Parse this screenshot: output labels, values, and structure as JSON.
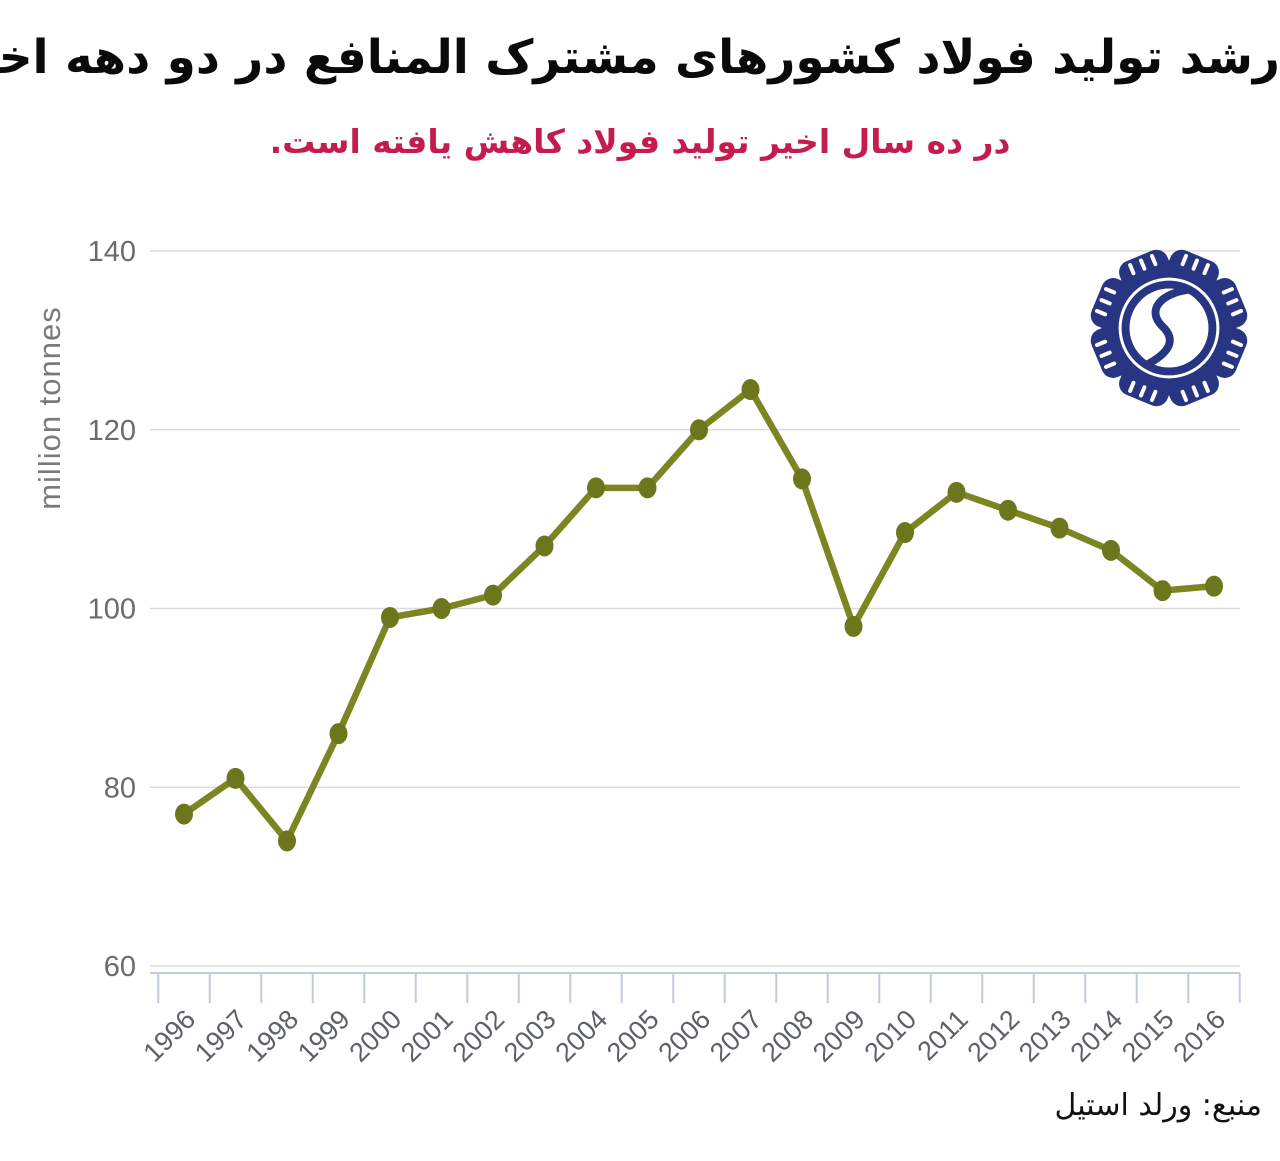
{
  "colors": {
    "title": "#0a0a0a",
    "subtitle": "#c41d4d",
    "line": "#7b8623",
    "marker": "#6c771d",
    "grid": "#dcdcdc",
    "axis_line": "#c2cadd",
    "tick_label": "#5d6166",
    "y_tick_label": "#6b6b6b",
    "y_unit_label": "#7a7a7a",
    "logo": "#283583",
    "source_text": "#111111"
  },
  "icons": {
    "logo": "hands-gear-steel-emblem"
  },
  "chart_data": {
    "type": "line",
    "title": "رشد تولید فولاد کشورهای مشترک المنافع در دو دهه اخیر",
    "subtitle": "در ده سال اخیر تولید فولاد کاهش یافته است.",
    "ylabel": "million tonnes",
    "xlabel": "",
    "categories": [
      "1996",
      "1997",
      "1998",
      "1999",
      "2000",
      "2001",
      "2002",
      "2003",
      "2004",
      "2005",
      "2006",
      "2007",
      "2008",
      "2009",
      "2010",
      "2011",
      "2012",
      "2013",
      "2014",
      "2015",
      "2016"
    ],
    "values": [
      77,
      81,
      74,
      86,
      99,
      100,
      101.5,
      107,
      113.5,
      113.5,
      120,
      124.5,
      114.5,
      98,
      108.5,
      113,
      111,
      109,
      106.5,
      102,
      102.5
    ],
    "ylim": [
      60,
      140
    ],
    "yticks": [
      60,
      80,
      100,
      120,
      140
    ],
    "grid": "horizontal",
    "legend": "none",
    "x_tick_rotation": -45,
    "source": "منبع: ورلد استیل"
  }
}
